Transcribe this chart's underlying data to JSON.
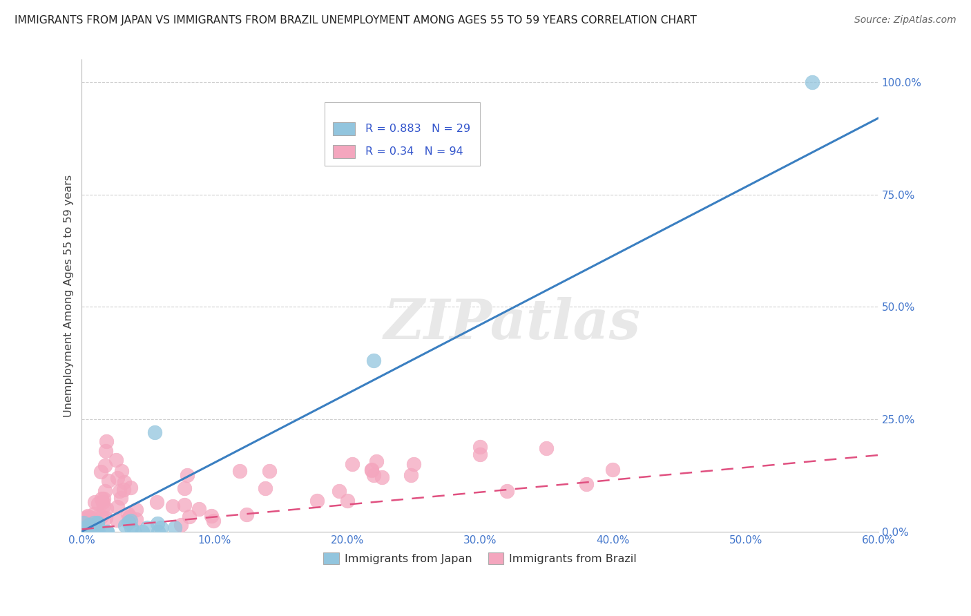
{
  "title": "IMMIGRANTS FROM JAPAN VS IMMIGRANTS FROM BRAZIL UNEMPLOYMENT AMONG AGES 55 TO 59 YEARS CORRELATION CHART",
  "source": "Source: ZipAtlas.com",
  "xlabel_vals": [
    0.0,
    10.0,
    20.0,
    30.0,
    40.0,
    50.0,
    60.0
  ],
  "ylabel_vals": [
    0.0,
    25.0,
    50.0,
    75.0,
    100.0
  ],
  "xlim": [
    0,
    60
  ],
  "ylim": [
    0,
    105
  ],
  "ylabel": "Unemployment Among Ages 55 to 59 years",
  "japan_R": 0.883,
  "japan_N": 29,
  "brazil_R": 0.34,
  "brazil_N": 94,
  "japan_color": "#92c5de",
  "brazil_color": "#f4a6be",
  "japan_line_color": "#3a7fc1",
  "brazil_line_color": "#e05080",
  "watermark": "ZIPatlas",
  "background_color": "#ffffff",
  "grid_color": "#d0d0d0",
  "japan_line_x0": 0.0,
  "japan_line_y0": 0.0,
  "japan_line_x1": 60.0,
  "japan_line_y1": 92.0,
  "brazil_line_x0": 0.0,
  "brazil_line_y0": 0.5,
  "brazil_line_x1": 60.0,
  "brazil_line_y1": 17.0
}
